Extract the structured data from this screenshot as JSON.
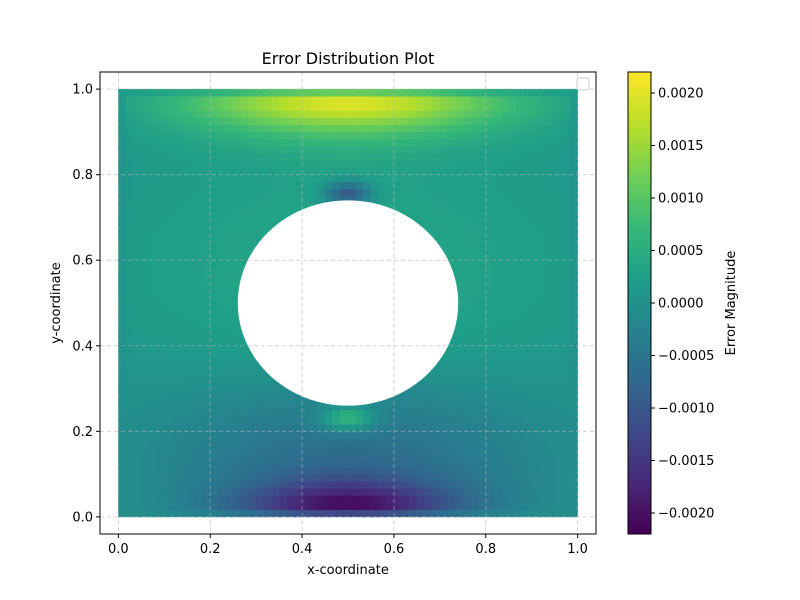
{
  "chart_data": {
    "type": "heatmap",
    "title": "Error Distribution Plot",
    "xlabel": "x-coordinate",
    "ylabel": "y-coordinate",
    "xlim": [
      -0.04,
      1.04
    ],
    "ylim": [
      -0.04,
      1.04
    ],
    "x_ticks": [
      0.0,
      0.2,
      0.4,
      0.6,
      0.8,
      1.0
    ],
    "x_tick_labels": [
      "0.0",
      "0.2",
      "0.4",
      "0.6",
      "0.8",
      "1.0"
    ],
    "y_ticks": [
      0.0,
      0.2,
      0.4,
      0.6,
      0.8,
      1.0
    ],
    "y_tick_labels": [
      "0.0",
      "0.2",
      "0.4",
      "0.6",
      "0.8",
      "1.0"
    ],
    "grid": true,
    "legend": "top-right (empty)",
    "colormap": "viridis",
    "domain": {
      "x": [
        0.0,
        1.0
      ],
      "y": [
        0.0,
        1.0
      ]
    },
    "hole": {
      "shape": "circle",
      "center": [
        0.5,
        0.5
      ],
      "radius": 0.24
    },
    "value_range": [
      -0.0022,
      0.0022
    ],
    "features": [
      {
        "x": 0.5,
        "y": 1.0,
        "value": 0.0022
      },
      {
        "x": 0.5,
        "y": 0.0,
        "value": -0.0022
      },
      {
        "x": 0.5,
        "y": 0.755,
        "value": -0.0012
      },
      {
        "x": 0.5,
        "y": 0.23,
        "value": 0.001
      }
    ],
    "colorbar": {
      "label": "Error Magnitude",
      "ticks": [
        0.002,
        0.0015,
        0.001,
        0.0005,
        0.0,
        -0.0005,
        -0.001,
        -0.0015,
        -0.002
      ],
      "tick_labels": [
        "0.0020",
        "0.0015",
        "0.0010",
        "0.0005",
        "0.0000",
        "−0.0005",
        "−0.0010",
        "−0.0015",
        "−0.0020"
      ],
      "colors": [
        "#440154",
        "#482878",
        "#3e4989",
        "#31688e",
        "#26828e",
        "#1f9e89",
        "#35b779",
        "#6ece58",
        "#b5de2b",
        "#fde725"
      ]
    }
  }
}
